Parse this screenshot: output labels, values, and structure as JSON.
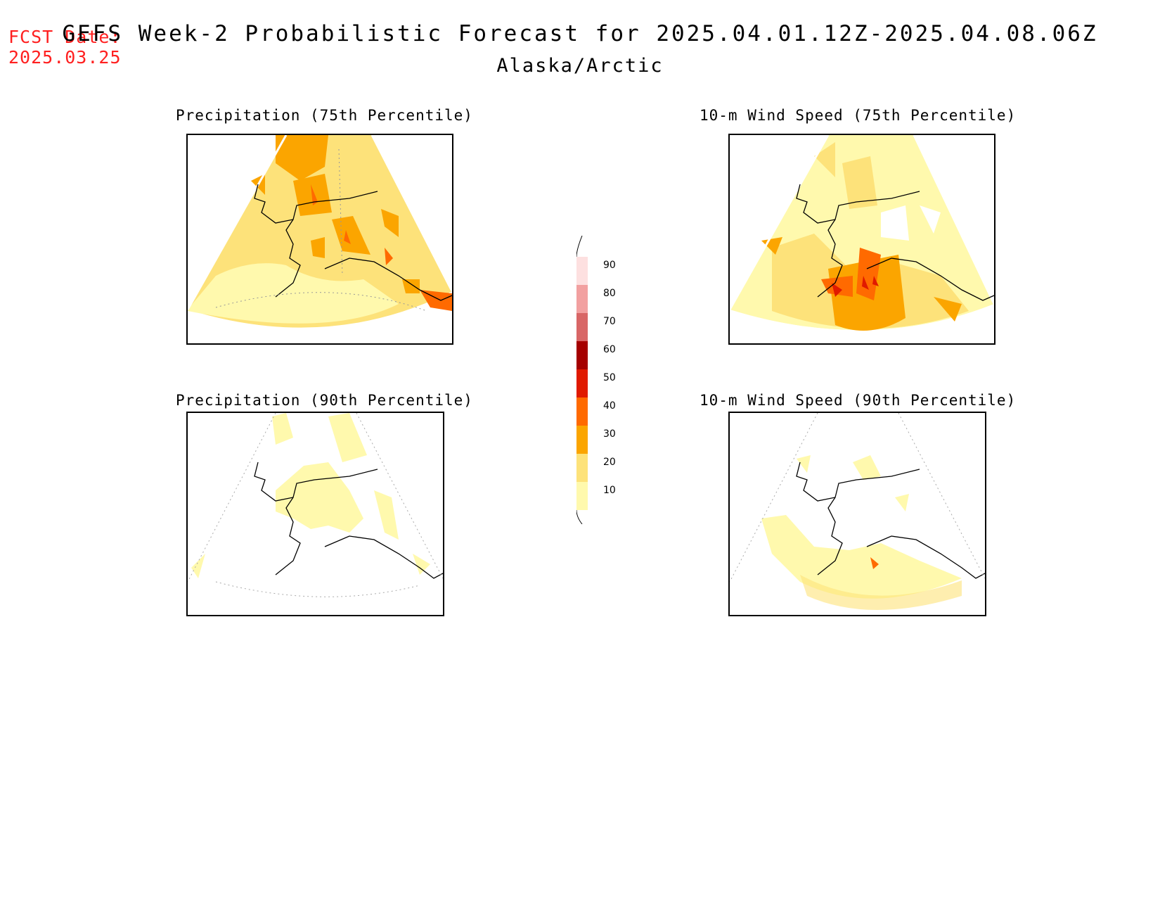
{
  "header": {
    "fcst_label": "FCST Date:",
    "fcst_date": "2025.03.25",
    "title": "GEFS Week-2 Probabilistic Forecast for 2025.04.01.12Z-2025.04.08.06Z",
    "region": "Alaska/Arctic"
  },
  "panels": [
    {
      "title": "Precipitation (75th Percentile)",
      "fill": "mostly 10-30, pockets 40-50"
    },
    {
      "title": "10-m Wind Speed (75th Percentile)",
      "fill": "10-40, max 60 near Bristol Bay"
    },
    {
      "title": "Precipitation (90th Percentile)",
      "fill": "mostly below 10, patches 10-20"
    },
    {
      "title": "10-m Wind Speed (90th Percentile)",
      "fill": "mostly below 10, 10-30 south"
    }
  ],
  "colorbar": {
    "labels": [
      "90",
      "80",
      "70",
      "60",
      "50",
      "40",
      "30",
      "20",
      "10"
    ],
    "colors": {
      "c10": "#fff9ad",
      "c20": "#fde27a",
      "c30": "#fba500",
      "c40": "#ff6a00",
      "c50": "#e01a00",
      "c60": "#a50000",
      "c70": "#d86666",
      "c80": "#f2a0a0",
      "c90": "#fde0e0"
    }
  }
}
